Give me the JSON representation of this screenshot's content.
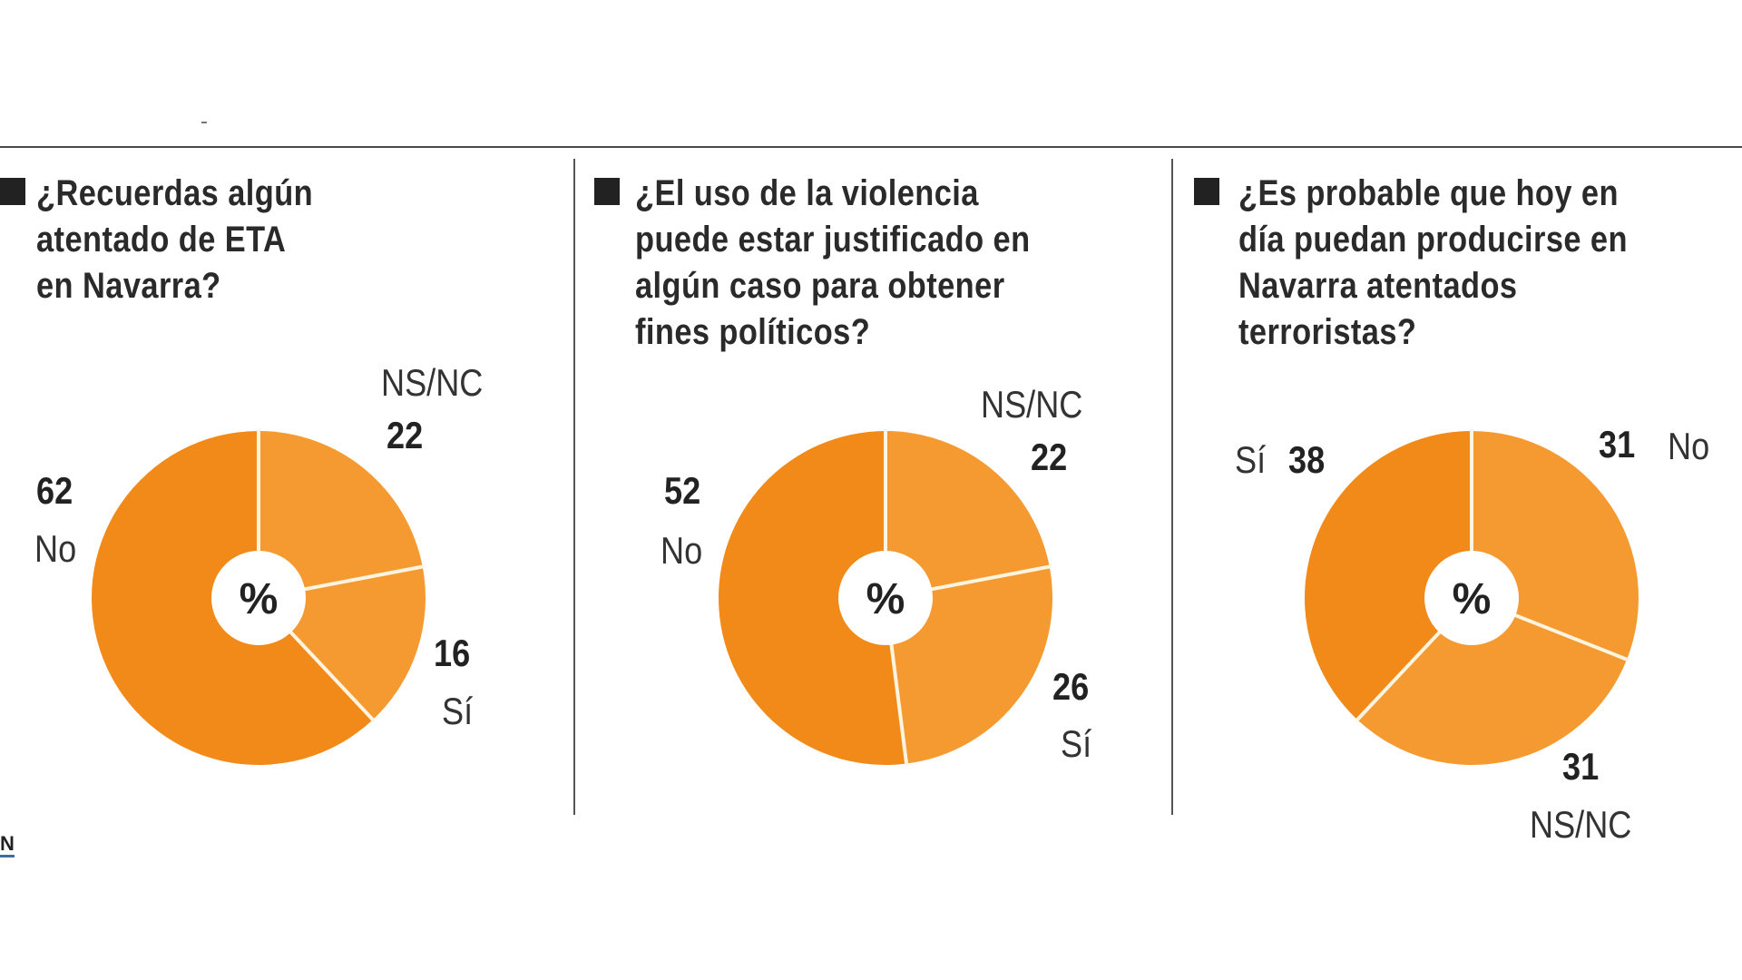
{
  "logo_text": "N",
  "colors": {
    "slice_dark": "#F28A1A",
    "slice_light": "#F59A30",
    "divider": "#FFF4E0",
    "text": "#222222"
  },
  "chart_data": [
    {
      "type": "pie",
      "title": "¿Recuerdas algún atentado de ETA en Navarra?",
      "title_lines": [
        "¿Recuerdas algún",
        "atentado de ETA",
        "en Navarra?"
      ],
      "center_label": "%",
      "slices": [
        {
          "label": "NS/NC",
          "value": 22
        },
        {
          "label": "Sí",
          "value": 16
        },
        {
          "label": "No",
          "value": 62
        }
      ]
    },
    {
      "type": "pie",
      "title": "¿El uso de la violencia puede estar justificado en algún caso para obtener fines políticos?",
      "title_lines": [
        "¿El uso de la violencia",
        "puede estar justificado en",
        "algún caso para obtener",
        "fines políticos?"
      ],
      "center_label": "%",
      "slices": [
        {
          "label": "NS/NC",
          "value": 22
        },
        {
          "label": "Sí",
          "value": 26
        },
        {
          "label": "No",
          "value": 52
        }
      ]
    },
    {
      "type": "pie",
      "title": "¿Es probable que hoy en día puedan producirse en Navarra atentados terroristas?",
      "title_lines": [
        "¿Es probable que hoy en",
        "día puedan producirse en",
        "Navarra atentados",
        "terroristas?"
      ],
      "center_label": "%",
      "slices": [
        {
          "label": "No",
          "value": 31
        },
        {
          "label": "NS/NC",
          "value": 31
        },
        {
          "label": "Sí",
          "value": 38
        }
      ]
    }
  ]
}
